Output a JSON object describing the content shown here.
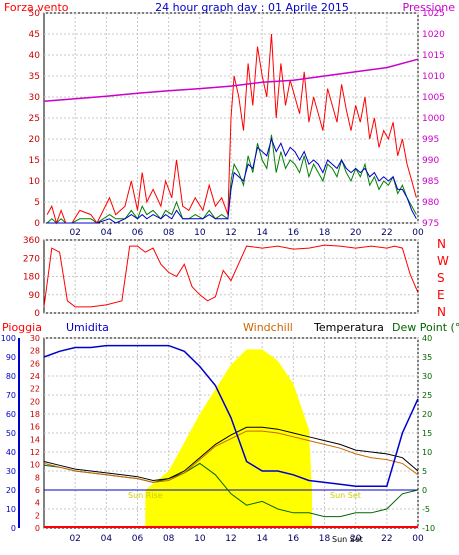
{
  "header": {
    "left_title": "Forza vento",
    "center_title": "24 hour graph day : 01 Aprile 2015",
    "right_title": "Pressione"
  },
  "middle": {
    "direction_letters": [
      "N",
      "W",
      "S",
      "E",
      "N"
    ]
  },
  "bottom_header": {
    "pioggia": "Pioggia",
    "umidita": "Umidita",
    "windchill": "Windchill",
    "temperatura": "Temperatura",
    "dewpoint": "Dew Point (°C"
  },
  "annotations": {
    "sun_rise": "Sun Rise",
    "sun_set": "Sun Set",
    "bottom_sun": "Sun Set"
  },
  "colors": {
    "wind": "#ff0000",
    "gust": "#008000",
    "avg": "#0000cc",
    "pressure": "#cc00cc",
    "humidity": "#0000cc",
    "windchill": "#cc6600",
    "temperature": "#000000",
    "dewpoint": "#006600",
    "sun": "#ffff00",
    "grid": "#c8c8c8"
  },
  "chart_data": [
    {
      "type": "line",
      "name": "wind-pressure",
      "title": "24 hour graph day : 01 Aprile 2015",
      "x_ticks": [
        "02",
        "04",
        "06",
        "08",
        "10",
        "12",
        "14",
        "16",
        "18",
        "20",
        "22",
        "00"
      ],
      "ylim_left": [
        0,
        50
      ],
      "yticks_left": [
        0,
        5,
        10,
        15,
        20,
        25,
        30,
        35,
        40,
        45,
        50
      ],
      "ylim_right": [
        975,
        1025
      ],
      "yticks_right": [
        975,
        980,
        985,
        990,
        995,
        1000,
        1005,
        1010,
        1015,
        1020,
        1025
      ],
      "wind_gust_x": [
        0.2,
        0.5,
        0.8,
        1.1,
        1.4,
        1.8,
        2.3,
        3.0,
        3.4,
        4.2,
        4.6,
        5.2,
        5.6,
        6.0,
        6.3,
        6.6,
        7.0,
        7.5,
        7.8,
        8.2,
        8.5,
        8.9,
        9.3,
        9.7,
        10.2,
        10.6,
        11.0,
        11.4,
        11.8,
        12.0,
        12.2,
        12.5,
        12.8,
        13.1,
        13.4,
        13.7,
        14.0,
        14.3,
        14.6,
        14.9,
        15.2,
        15.5,
        15.8,
        16.1,
        16.4,
        16.7,
        17.0,
        17.3,
        17.6,
        17.9,
        18.2,
        18.5,
        18.8,
        19.1,
        19.4,
        19.7,
        20.0,
        20.3,
        20.6,
        20.9,
        21.2,
        21.5,
        21.8,
        22.1,
        22.4,
        22.7,
        23.0,
        23.3,
        23.6,
        23.9
      ],
      "wind_gust": [
        2,
        4,
        0,
        3,
        0,
        0,
        3,
        2,
        0,
        6,
        2,
        4,
        10,
        3,
        12,
        5,
        8,
        4,
        10,
        6,
        15,
        4,
        3,
        6,
        3,
        9,
        4,
        6,
        2,
        25,
        35,
        30,
        22,
        38,
        28,
        42,
        35,
        30,
        45,
        25,
        38,
        28,
        34,
        30,
        26,
        36,
        24,
        30,
        26,
        22,
        32,
        28,
        24,
        33,
        27,
        22,
        28,
        24,
        30,
        20,
        25,
        18,
        22,
        20,
        24,
        16,
        20,
        14,
        10,
        6
      ],
      "wind_speed": [
        0,
        1,
        0,
        1,
        0,
        0,
        1,
        1,
        0,
        2,
        1,
        1,
        3,
        1,
        4,
        2,
        3,
        1,
        3,
        2,
        5,
        1,
        1,
        2,
        1,
        3,
        1,
        2,
        1,
        10,
        14,
        12,
        9,
        16,
        12,
        19,
        15,
        13,
        21,
        12,
        17,
        13,
        15,
        14,
        12,
        16,
        11,
        14,
        12,
        10,
        14,
        13,
        11,
        15,
        12,
        10,
        13,
        11,
        14,
        9,
        11,
        8,
        10,
        9,
        11,
        7,
        9,
        6,
        4,
        2
      ],
      "wind_avg": [
        0,
        0,
        0,
        0,
        0,
        0,
        0,
        0,
        0,
        1,
        0,
        1,
        2,
        1,
        2,
        1,
        2,
        1,
        2,
        1,
        3,
        1,
        1,
        1,
        1,
        2,
        1,
        1,
        1,
        8,
        12,
        11,
        10,
        14,
        13,
        18,
        17,
        16,
        20,
        17,
        19,
        16,
        18,
        17,
        15,
        17,
        14,
        15,
        14,
        12,
        15,
        14,
        13,
        15,
        13,
        12,
        13,
        12,
        13,
        11,
        12,
        10,
        11,
        10,
        11,
        8,
        8,
        6,
        3,
        1
      ],
      "pressure_x": [
        0,
        2,
        4,
        6,
        8,
        10,
        12,
        14,
        16,
        18,
        20,
        22,
        24
      ],
      "pressure": [
        1004.0,
        1004.6,
        1005.2,
        1005.9,
        1006.5,
        1007.0,
        1007.6,
        1008.5,
        1009.0,
        1010.0,
        1011.0,
        1012.0,
        1014.0
      ]
    },
    {
      "type": "line",
      "name": "wind-direction",
      "ylim": [
        0,
        360
      ],
      "yticks": [
        0,
        90,
        180,
        270,
        360
      ],
      "x": [
        0,
        0.5,
        1,
        1.5,
        2,
        3,
        4,
        5,
        5.5,
        6,
        6.5,
        7,
        7.5,
        8,
        8.5,
        9,
        9.5,
        10,
        10.5,
        11,
        11.5,
        12,
        13,
        14,
        15,
        16,
        17,
        18,
        19,
        20,
        21,
        22,
        22.5,
        23,
        23.5,
        24
      ],
      "direction": [
        30,
        320,
        300,
        60,
        30,
        30,
        40,
        60,
        330,
        330,
        300,
        320,
        240,
        200,
        180,
        240,
        130,
        90,
        60,
        80,
        210,
        160,
        330,
        320,
        330,
        315,
        320,
        335,
        330,
        320,
        330,
        320,
        330,
        320,
        190,
        100
      ]
    },
    {
      "type": "line",
      "name": "temperature-humidity",
      "ylim_humidity": [
        0,
        100
      ],
      "yticks_humidity": [
        0,
        10,
        20,
        30,
        40,
        50,
        60,
        70,
        80,
        90,
        100
      ],
      "ylim_rain": [
        0,
        30
      ],
      "yticks_rain": [
        0,
        2,
        4,
        6,
        8,
        10,
        12,
        14,
        16,
        18,
        20,
        22,
        24,
        26,
        28,
        30
      ],
      "ylim_temp": [
        -10,
        40
      ],
      "yticks_temp": [
        -10,
        -5,
        0,
        5,
        10,
        15,
        20,
        25,
        30,
        35,
        40
      ],
      "x": [
        0,
        1,
        2,
        3,
        4,
        5,
        6,
        7,
        8,
        9,
        10,
        11,
        12,
        13,
        14,
        15,
        16,
        17,
        18,
        19,
        20,
        21,
        22,
        23,
        24
      ],
      "humidity": [
        90,
        93,
        95,
        95,
        96,
        96,
        96,
        96,
        96,
        93,
        85,
        75,
        58,
        35,
        30,
        30,
        28,
        25,
        24,
        23,
        22,
        22,
        22,
        50,
        68
      ],
      "temperature": [
        7.5,
        6.5,
        5.5,
        5,
        4.5,
        4,
        3.5,
        2.5,
        3,
        5,
        8.5,
        12,
        14.5,
        16.5,
        16.5,
        16,
        15,
        14,
        13,
        12,
        10.5,
        10,
        9.5,
        8.5,
        5
      ],
      "windchill": [
        7,
        6,
        5,
        4.5,
        4,
        3.5,
        3,
        2,
        2.5,
        4.5,
        8,
        11.5,
        13.5,
        15.5,
        15.5,
        15,
        14,
        13,
        12,
        11,
        9.5,
        8.5,
        8,
        7,
        4
      ],
      "dewpoint": [
        6.5,
        6,
        5,
        4.5,
        4,
        3.5,
        3,
        2,
        3,
        4.5,
        7,
        4,
        -1,
        -4,
        -3,
        -5,
        -6,
        -6,
        -7,
        -7,
        -6,
        -6,
        -5,
        -1,
        0
      ],
      "solar_x": [
        6.5,
        8,
        10,
        12,
        13,
        14,
        15,
        16,
        17,
        17.2
      ],
      "solar": [
        0,
        5,
        20,
        33,
        37,
        37,
        34,
        28,
        16,
        0
      ]
    }
  ]
}
